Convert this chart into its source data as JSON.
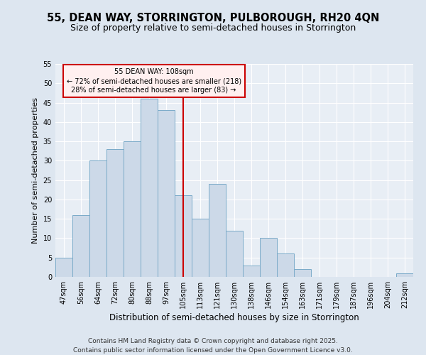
{
  "title": "55, DEAN WAY, STORRINGTON, PULBOROUGH, RH20 4QN",
  "subtitle": "Size of property relative to semi-detached houses in Storrington",
  "xlabel": "Distribution of semi-detached houses by size in Storrington",
  "ylabel": "Number of semi-detached properties",
  "categories": [
    "47sqm",
    "56sqm",
    "64sqm",
    "72sqm",
    "80sqm",
    "88sqm",
    "97sqm",
    "105sqm",
    "113sqm",
    "121sqm",
    "130sqm",
    "138sqm",
    "146sqm",
    "154sqm",
    "163sqm",
    "171sqm",
    "179sqm",
    "187sqm",
    "196sqm",
    "204sqm",
    "212sqm"
  ],
  "values": [
    5,
    16,
    30,
    33,
    35,
    46,
    43,
    21,
    15,
    24,
    12,
    3,
    10,
    6,
    2,
    0,
    0,
    0,
    0,
    0,
    1
  ],
  "bar_color": "#ccd9e8",
  "bar_edge_color": "#7aaac8",
  "vline_index": 7,
  "vline_color": "#cc0000",
  "annotation_title": "55 DEAN WAY: 108sqm",
  "annotation_line1": "← 72% of semi-detached houses are smaller (218)",
  "annotation_line2": "28% of semi-detached houses are larger (83) →",
  "annotation_box_facecolor": "#fff0f0",
  "annotation_box_edge": "#cc0000",
  "footer_line1": "Contains HM Land Registry data © Crown copyright and database right 2025.",
  "footer_line2": "Contains public sector information licensed under the Open Government Licence v3.0.",
  "ylim": [
    0,
    55
  ],
  "fig_background": "#dde6f0",
  "plot_background": "#e8eef5",
  "grid_color": "#ffffff",
  "title_fontsize": 10.5,
  "subtitle_fontsize": 9,
  "xlabel_fontsize": 8.5,
  "ylabel_fontsize": 8,
  "tick_fontsize": 7,
  "footer_fontsize": 6.5
}
